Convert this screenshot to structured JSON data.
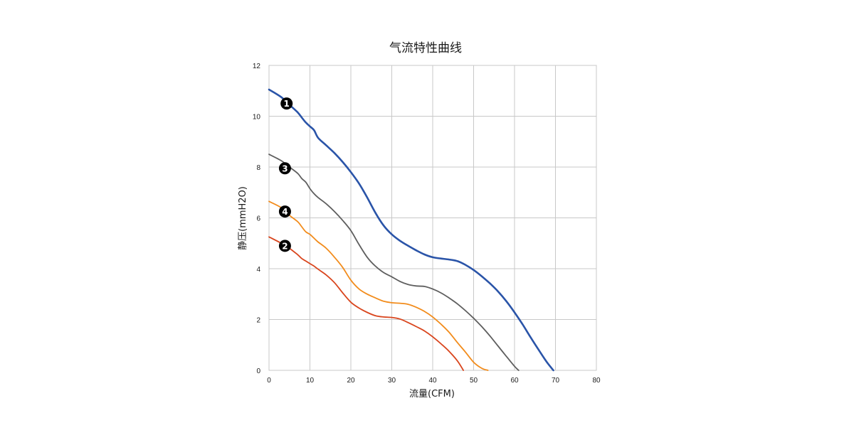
{
  "chart_data": {
    "type": "line",
    "title": "气流特性曲线",
    "xlabel": "流量(CFM)",
    "ylabel": "静压(mmH2O)",
    "xlim": [
      0,
      80
    ],
    "ylim": [
      0,
      12
    ],
    "xticks": [
      0,
      10,
      20,
      30,
      40,
      50,
      60,
      70,
      80
    ],
    "yticks": [
      0,
      2,
      4,
      6,
      8,
      10,
      12
    ],
    "grid": true,
    "series": [
      {
        "marker": "1",
        "color": "#2a54a8",
        "x": [
          0,
          3,
          5,
          7,
          8,
          9,
          10,
          11,
          12,
          14,
          16,
          18,
          20,
          22,
          24,
          26,
          28,
          30,
          32,
          34,
          36,
          38,
          40,
          42,
          44,
          46,
          48,
          50,
          52,
          54,
          56,
          58,
          60,
          62,
          64,
          66,
          68,
          69.5
        ],
        "y": [
          11.05,
          10.75,
          10.45,
          10.15,
          9.95,
          9.75,
          9.6,
          9.45,
          9.15,
          8.85,
          8.55,
          8.2,
          7.8,
          7.35,
          6.8,
          6.2,
          5.7,
          5.35,
          5.1,
          4.9,
          4.72,
          4.56,
          4.45,
          4.4,
          4.36,
          4.3,
          4.15,
          3.95,
          3.7,
          3.42,
          3.1,
          2.72,
          2.28,
          1.8,
          1.28,
          0.78,
          0.3,
          0
        ]
      },
      {
        "marker": "3",
        "color": "#5e5e5e",
        "x": [
          0,
          3,
          5,
          7,
          8,
          9,
          10,
          11,
          12,
          14,
          16,
          18,
          20,
          22,
          24,
          26,
          28,
          30,
          32,
          34,
          36,
          38,
          40,
          42,
          44,
          46,
          48,
          50,
          52,
          54,
          56,
          58,
          60,
          61
        ],
        "y": [
          8.5,
          8.25,
          8.0,
          7.75,
          7.55,
          7.4,
          7.15,
          6.95,
          6.8,
          6.55,
          6.25,
          5.9,
          5.5,
          4.95,
          4.45,
          4.1,
          3.85,
          3.68,
          3.5,
          3.38,
          3.32,
          3.3,
          3.2,
          3.05,
          2.85,
          2.62,
          2.35,
          2.05,
          1.72,
          1.35,
          0.95,
          0.55,
          0.16,
          0
        ]
      },
      {
        "marker": "4",
        "color": "#f28c1c",
        "x": [
          0,
          3,
          5,
          7,
          8,
          9,
          10,
          11,
          12,
          14,
          16,
          18,
          20,
          22,
          24,
          26,
          28,
          30,
          32,
          34,
          36,
          38,
          40,
          42,
          44,
          46,
          48,
          50,
          52,
          53.5
        ],
        "y": [
          6.65,
          6.4,
          6.1,
          5.85,
          5.65,
          5.45,
          5.35,
          5.2,
          5.05,
          4.8,
          4.45,
          4.05,
          3.55,
          3.2,
          3.0,
          2.85,
          2.72,
          2.66,
          2.64,
          2.6,
          2.48,
          2.32,
          2.1,
          1.82,
          1.5,
          1.1,
          0.72,
          0.32,
          0.08,
          0
        ]
      },
      {
        "marker": "2",
        "color": "#d9451d",
        "x": [
          0,
          3,
          5,
          7,
          8,
          9,
          10,
          11,
          12,
          14,
          16,
          18,
          20,
          22,
          24,
          26,
          28,
          30,
          32,
          34,
          36,
          38,
          40,
          42,
          44,
          46,
          47.5
        ],
        "y": [
          5.25,
          5.0,
          4.8,
          4.55,
          4.4,
          4.3,
          4.2,
          4.1,
          3.98,
          3.75,
          3.45,
          3.05,
          2.68,
          2.45,
          2.28,
          2.15,
          2.1,
          2.08,
          2.02,
          1.88,
          1.72,
          1.55,
          1.32,
          1.05,
          0.75,
          0.38,
          0
        ]
      }
    ],
    "markers": [
      {
        "label": "1",
        "x": 4.3,
        "y": 10.5
      },
      {
        "label": "3",
        "x": 3.9,
        "y": 7.95
      },
      {
        "label": "4",
        "x": 3.9,
        "y": 6.25
      },
      {
        "label": "2",
        "x": 3.9,
        "y": 4.9
      }
    ]
  }
}
